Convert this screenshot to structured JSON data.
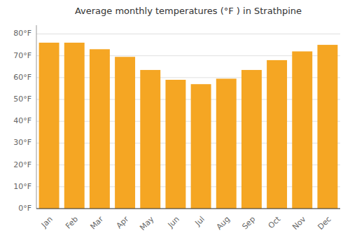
{
  "chart_data": {
    "type": "bar",
    "title": "Average monthly temperatures (°F ) in Strathpine",
    "categories": [
      "Jan",
      "Feb",
      "Mar",
      "Apr",
      "May",
      "Jun",
      "Jul",
      "Aug",
      "Sep",
      "Oct",
      "Nov",
      "Dec"
    ],
    "values": [
      76,
      76,
      73,
      69.5,
      63.5,
      59,
      57,
      59.5,
      63.5,
      68,
      72,
      75
    ],
    "color": "#F5A623",
    "ylim": [
      0,
      84
    ],
    "yticks": [
      {
        "value": 0,
        "label": "0°F"
      },
      {
        "value": 10,
        "label": "10°F"
      },
      {
        "value": 20,
        "label": "20°F"
      },
      {
        "value": 30,
        "label": "30°F"
      },
      {
        "value": 40,
        "label": "40°F"
      },
      {
        "value": 50,
        "label": "50°F"
      },
      {
        "value": 60,
        "label": "60°F"
      },
      {
        "value": 70,
        "label": "70°F"
      },
      {
        "value": 80,
        "label": "80°F"
      }
    ],
    "grid": true
  }
}
